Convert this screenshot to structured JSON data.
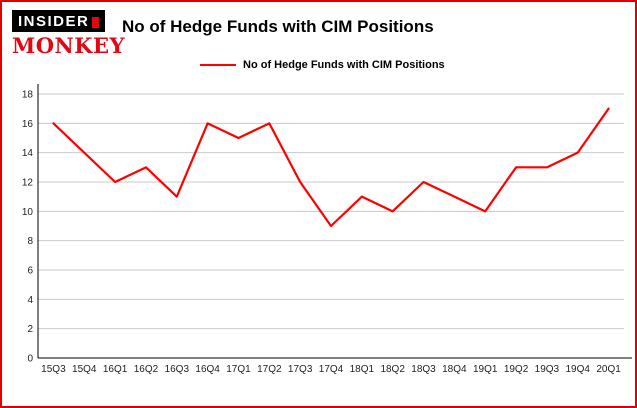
{
  "brand": {
    "line1": "INSIDER",
    "line2": "MONKEY"
  },
  "header": {
    "title": "No of Hedge Funds with CIM Positions"
  },
  "legend": {
    "label": "No of Hedge Funds with CIM Positions",
    "color": "#ff0000"
  },
  "chart_data": {
    "type": "line",
    "title": "No of Hedge Funds with CIM Positions",
    "categories": [
      "15Q3",
      "15Q4",
      "16Q1",
      "16Q2",
      "16Q3",
      "16Q4",
      "17Q1",
      "17Q2",
      "17Q3",
      "17Q4",
      "18Q1",
      "18Q2",
      "18Q3",
      "18Q4",
      "19Q1",
      "19Q2",
      "19Q3",
      "19Q4",
      "20Q1"
    ],
    "series": [
      {
        "name": "No of Hedge Funds with CIM Positions",
        "color": "#ff0000",
        "values": [
          16,
          14,
          12,
          13,
          11,
          16,
          15,
          16,
          12,
          9,
          11,
          10,
          12,
          11,
          10,
          13,
          13,
          14,
          17
        ]
      }
    ],
    "xlabel": "",
    "ylabel": "",
    "ylim": [
      0,
      18
    ],
    "ytick_step": 2,
    "grid": true,
    "legend_position": "top"
  },
  "colors": {
    "border": "#e00000",
    "grid": "#c9c9c9",
    "axis": "#000000",
    "tick_text": "#222222"
  }
}
